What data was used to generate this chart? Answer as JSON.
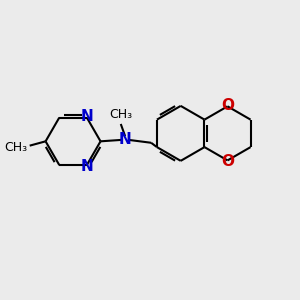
{
  "background_color": "#ebebeb",
  "bond_color": "#000000",
  "n_color": "#0000cc",
  "o_color": "#cc0000",
  "line_width": 1.5,
  "font_size": 10,
  "figsize": [
    3.0,
    3.0
  ],
  "dpi": 100,
  "xlim": [
    0,
    10
  ],
  "ylim": [
    0,
    10
  ]
}
